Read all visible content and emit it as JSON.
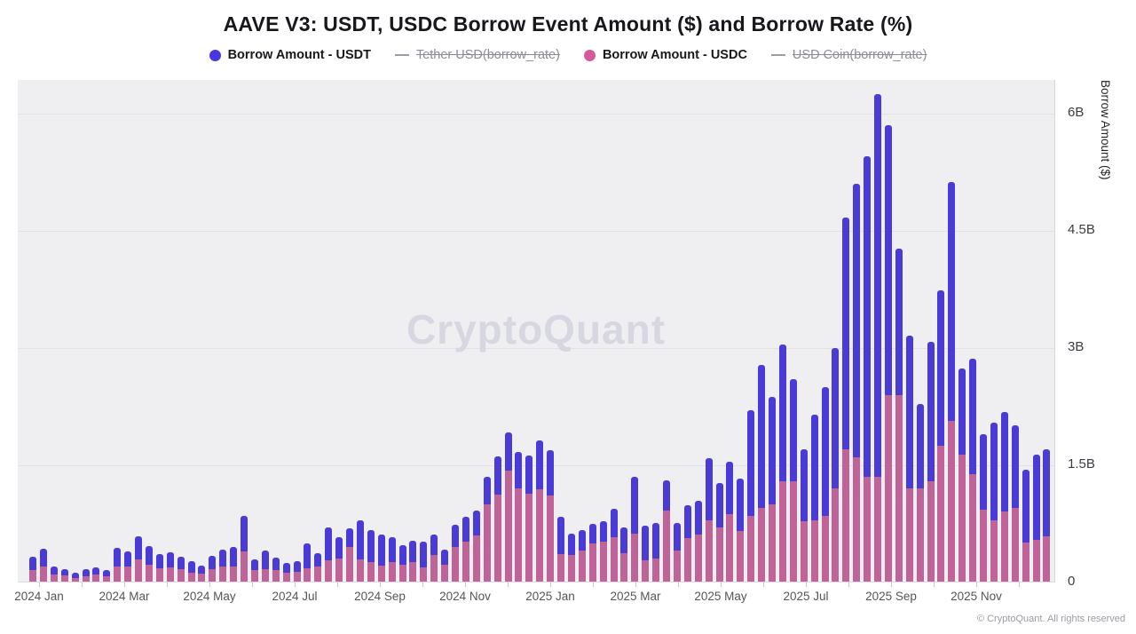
{
  "page": {
    "title": "AAVE V3: USDT, USDC Borrow Event Amount ($) and Borrow Rate (%)",
    "watermark": "CryptoQuant",
    "footer": "© CryptoQuant. All rights reserved"
  },
  "legend": {
    "items": [
      {
        "label": "Borrow Amount - USDT",
        "marker": "dot",
        "color": "#4936e0",
        "disabled": false
      },
      {
        "label": "Tether USD(borrow_rate)",
        "marker": "line",
        "color": "#9a9ca4",
        "disabled": true
      },
      {
        "label": "Borrow Amount - USDC",
        "marker": "dot",
        "color": "#d45a9e",
        "disabled": false
      },
      {
        "label": "USD Coin(borrow_rate)",
        "marker": "line",
        "color": "#9a9ca4",
        "disabled": true
      }
    ]
  },
  "y_axis": {
    "title": "Borrow Amount ($)",
    "tick_labels": [
      "6B",
      "4.5B",
      "3B",
      "1.5B",
      "0"
    ],
    "tick_values": [
      6,
      4.5,
      3,
      1.5,
      0
    ]
  },
  "x_axis": {
    "tick_labels": [
      "2024 Jan",
      "2024 Mar",
      "2024 May",
      "2024 Jul",
      "2024 Sep",
      "2024 Nov",
      "2025 Jan",
      "2025 Mar",
      "2025 May",
      "2025 Jul",
      "2025 Sep",
      "2025 Nov"
    ],
    "months_total": 24
  },
  "chart_data": {
    "type": "bar",
    "stacked": true,
    "value_unit": "billions USD ($B)",
    "title": "AAVE V3: USDT, USDC Borrow Event Amount ($) and Borrow Rate (%)",
    "xlabel": "",
    "ylabel": "Borrow Amount ($)",
    "ylim": [
      0,
      6.6
    ],
    "yticks": [
      0,
      1.5,
      3,
      4.5,
      6
    ],
    "x_range": "2024 Jan to 2025 Nov, weekly bars",
    "points_per_series": 97,
    "grid": "horizontal",
    "legend_position": "top",
    "x_tick_labels": [
      "2024 Jan",
      "2024 Mar",
      "2024 May",
      "2024 Jul",
      "2024 Sep",
      "2024 Nov",
      "2025 Jan",
      "2025 Mar",
      "2025 May",
      "2025 Jul",
      "2025 Sep",
      "2025 Nov"
    ],
    "series": [
      {
        "name": "Borrow Amount - USDC",
        "color": "#bf6398",
        "values": [
          0.16,
          0.21,
          0.1,
          0.09,
          0.06,
          0.08,
          0.1,
          0.08,
          0.21,
          0.2,
          0.29,
          0.23,
          0.18,
          0.19,
          0.17,
          0.13,
          0.11,
          0.17,
          0.21,
          0.2,
          0.4,
          0.16,
          0.17,
          0.16,
          0.12,
          0.14,
          0.18,
          0.2,
          0.28,
          0.31,
          0.45,
          0.29,
          0.26,
          0.22,
          0.26,
          0.23,
          0.26,
          0.19,
          0.35,
          0.23,
          0.45,
          0.52,
          0.6,
          1.0,
          1.13,
          1.43,
          1.2,
          1.14,
          1.19,
          1.11,
          0.36,
          0.35,
          0.41,
          0.5,
          0.52,
          0.58,
          0.38,
          0.62,
          0.28,
          0.31,
          0.92,
          0.41,
          0.57,
          0.61,
          0.8,
          0.7,
          0.88,
          0.66,
          0.85,
          0.95,
          1.0,
          1.3,
          1.3,
          0.78,
          0.8,
          0.85,
          1.2,
          1.7,
          1.6,
          1.35,
          1.35,
          2.4,
          2.4,
          1.2,
          1.2,
          1.3,
          1.75,
          2.07,
          1.64,
          1.39,
          0.93,
          0.79,
          0.91,
          0.96,
          0.51,
          0.54,
          0.59
        ]
      },
      {
        "name": "Borrow Amount - USDT",
        "color": "#4b3bd6",
        "values": [
          0.17,
          0.22,
          0.11,
          0.08,
          0.07,
          0.09,
          0.09,
          0.08,
          0.23,
          0.2,
          0.3,
          0.24,
          0.18,
          0.2,
          0.16,
          0.14,
          0.11,
          0.17,
          0.21,
          0.26,
          0.45,
          0.13,
          0.24,
          0.16,
          0.13,
          0.13,
          0.32,
          0.18,
          0.42,
          0.27,
          0.24,
          0.51,
          0.41,
          0.39,
          0.32,
          0.25,
          0.28,
          0.33,
          0.26,
          0.19,
          0.29,
          0.32,
          0.32,
          0.35,
          0.48,
          0.49,
          0.47,
          0.49,
          0.63,
          0.58,
          0.48,
          0.28,
          0.26,
          0.25,
          0.26,
          0.36,
          0.33,
          0.73,
          0.45,
          0.45,
          0.39,
          0.35,
          0.42,
          0.44,
          0.79,
          0.57,
          0.67,
          0.67,
          1.35,
          1.83,
          1.38,
          1.75,
          1.3,
          0.92,
          1.35,
          1.65,
          1.8,
          2.97,
          3.5,
          4.1,
          4.9,
          3.45,
          1.87,
          1.96,
          1.09,
          1.78,
          1.99,
          3.05,
          1.1,
          1.47,
          0.97,
          1.25,
          1.27,
          1.05,
          0.93,
          1.1,
          1.11
        ]
      }
    ],
    "disabled_series": [
      {
        "name": "Tether USD(borrow_rate)",
        "type": "line",
        "visible": false
      },
      {
        "name": "USD Coin(borrow_rate)",
        "type": "line",
        "visible": false
      }
    ]
  }
}
